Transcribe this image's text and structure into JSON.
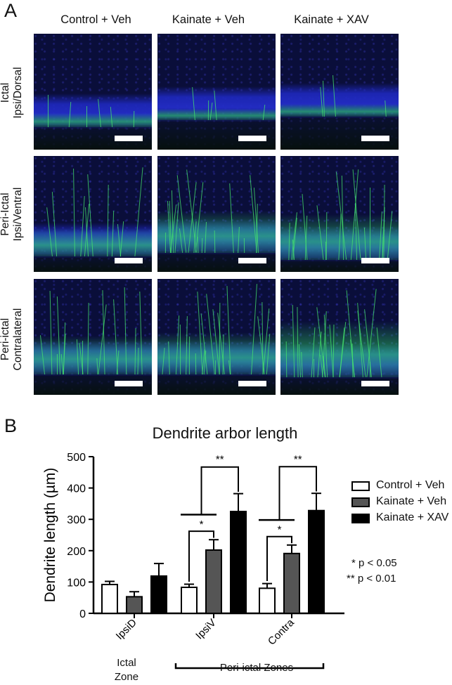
{
  "panel_a": {
    "letter": "A",
    "columns": [
      "Control + Veh",
      "Kainate + Veh",
      "Kainate + XAV"
    ],
    "rows": [
      {
        "line1": "Ictal",
        "line2": "Ipsi/Dorsal"
      },
      {
        "line1": "Peri-Ictal",
        "line2": "Ipsi/Ventral"
      },
      {
        "line1": "Peri-ictal",
        "line2": "Contralateral"
      }
    ]
  },
  "panel_b": {
    "letter": "B",
    "significance": {
      "single": "* p < 0.05",
      "double": "** p < 0.01",
      "star": "*",
      "dstar": "**"
    },
    "zones": {
      "ictal_line1": "Ictal",
      "ictal_line2": "Zone",
      "peri": "Peri-ictal Zones"
    }
  },
  "colors": {
    "control": "#ffffff",
    "kainate_veh": "#555555",
    "kainate_xav": "#000000",
    "nuclei": "#2a35c8",
    "neurons": "#39e06a"
  },
  "chart_data": {
    "type": "bar",
    "title": "Dendrite arbor length",
    "xlabel": "",
    "ylabel": "Dendrite length (µm)",
    "ylim": [
      0,
      500
    ],
    "yticks": [
      0,
      100,
      200,
      300,
      400,
      500
    ],
    "categories": [
      "IpsiD",
      "IpsiV",
      "Contra"
    ],
    "series": [
      {
        "name": "Control + Veh",
        "values": [
          92,
          83,
          80
        ],
        "errors": [
          10,
          10,
          15
        ]
      },
      {
        "name": "Kainate + Veh",
        "values": [
          53,
          202,
          191
        ],
        "errors": [
          16,
          33,
          27
        ]
      },
      {
        "name": "Kainate + XAV",
        "values": [
          119,
          325,
          328
        ],
        "errors": [
          40,
          57,
          55
        ]
      }
    ],
    "legend": "right",
    "grid": false
  }
}
